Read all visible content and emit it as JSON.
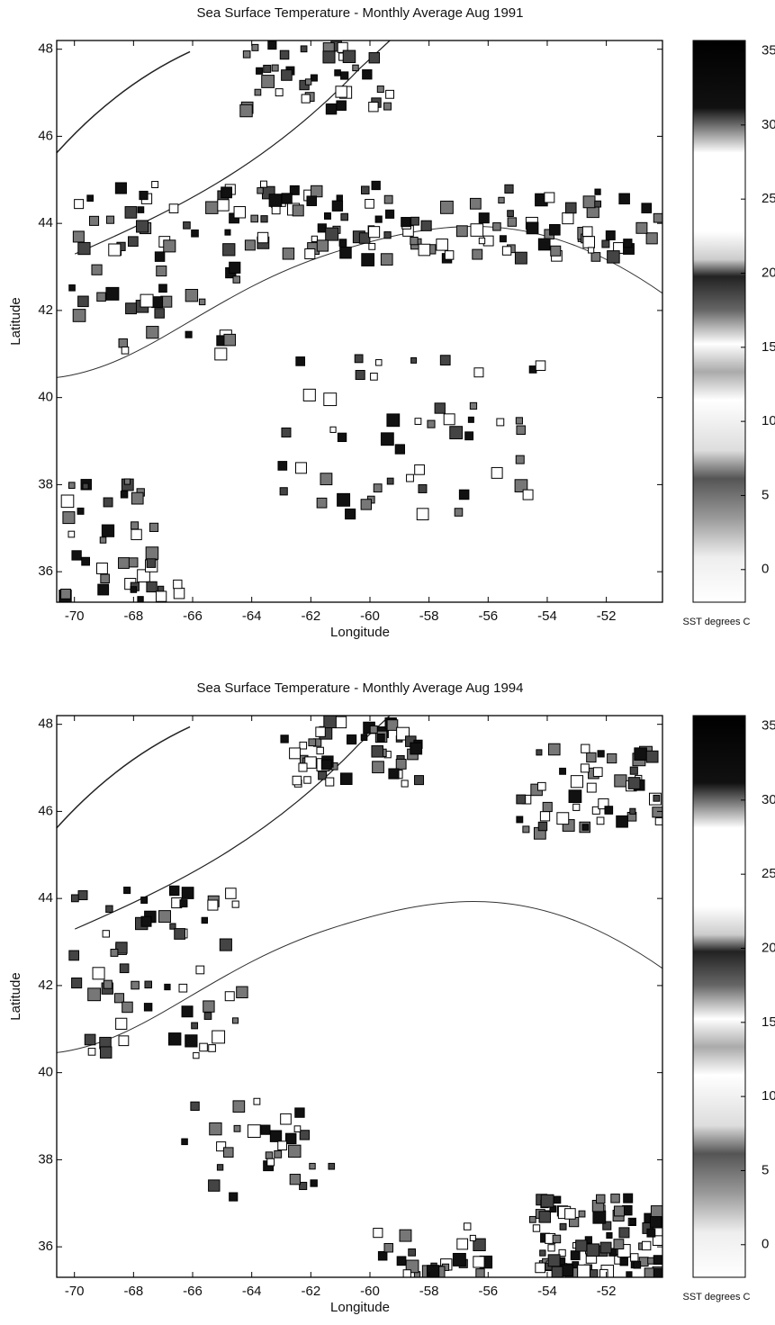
{
  "chart_data": [
    {
      "type": "heatmap",
      "title": "Sea Surface Temperature - Monthly Average Aug 1991",
      "x_label": "Longitude",
      "y_label": "Latitude",
      "xlim": [
        -70.6,
        -50.1
      ],
      "xticks": [
        -70,
        -68,
        -66,
        -64,
        -62,
        -60,
        -58,
        -56,
        -54,
        -52
      ],
      "ylim": [
        35.3,
        48.2
      ],
      "yticks": [
        36,
        38,
        40,
        42,
        44,
        46,
        48
      ],
      "colorbar": {
        "label": "SST degrees C",
        "lim": [
          -2.2,
          35.7
        ],
        "ticks": [
          0,
          5,
          10,
          15,
          20,
          25,
          30,
          35
        ]
      }
    },
    {
      "type": "heatmap",
      "title": "Sea Surface Temperature - Monthly Average Aug 1994",
      "x_label": "Longitude",
      "y_label": "Latitude",
      "xlim": [
        -70.6,
        -50.1
      ],
      "xticks": [
        -70,
        -68,
        -66,
        -64,
        -62,
        -60,
        -58,
        -56,
        -54,
        -52
      ],
      "ylim": [
        35.3,
        48.2
      ],
      "yticks": [
        36,
        38,
        40,
        42,
        44,
        46,
        48
      ],
      "colorbar": {
        "label": "SST degrees C",
        "lim": [
          -2.2,
          35.7
        ],
        "ticks": [
          0,
          5,
          10,
          15,
          20,
          25,
          30,
          35
        ]
      }
    }
  ]
}
